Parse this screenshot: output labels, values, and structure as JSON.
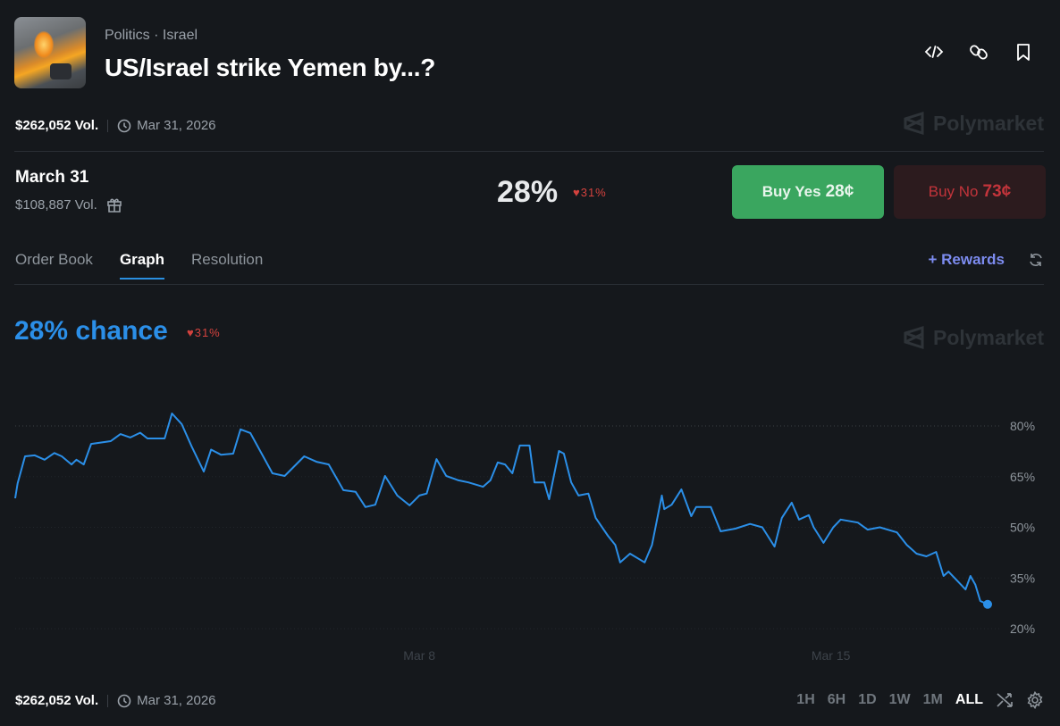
{
  "header": {
    "category": "Politics",
    "tag": "Israel",
    "title": "US/Israel strike Yemen by...?",
    "icons": [
      "code-embed-icon",
      "link-icon",
      "bookmark-icon"
    ]
  },
  "meta": {
    "volume": "$262,052 Vol.",
    "end_date": "Mar 31, 2026"
  },
  "brand": "Polymarket",
  "market": {
    "title": "March 31",
    "volume": "$108,887 Vol.",
    "percent": "28%",
    "change": "31%",
    "change_direction": "down",
    "buy_yes_label": "Buy Yes",
    "buy_yes_price": "28¢",
    "buy_no_label": "Buy No",
    "buy_no_price": "73¢"
  },
  "tabs": [
    {
      "label": "Order Book",
      "active": false
    },
    {
      "label": "Graph",
      "active": true
    },
    {
      "label": "Resolution",
      "active": false
    }
  ],
  "rewards": "+ Rewards",
  "chance": {
    "label": "28% chance",
    "change": "31%"
  },
  "colors": {
    "line": "#2b8fe8",
    "yes": "#3aa65f",
    "no": "#c3343b",
    "down": "#d4423e"
  },
  "chart_data": {
    "type": "line",
    "ylabel": "",
    "xlabel": "",
    "grid": true,
    "y_ticks": [
      "80%",
      "65%",
      "50%",
      "35%",
      "20%"
    ],
    "y_tick_values": [
      80,
      65,
      50,
      35,
      20
    ],
    "x_ticks": [
      "Mar 8",
      "Mar 15"
    ],
    "x_tick_values": [
      "2026-03-08T00:00",
      "2026-03-15T00:00"
    ],
    "series": [
      {
        "points": [
          [
            "2026-03-01T03:00",
            58.6
          ],
          [
            "2026-03-01T04:00",
            63
          ],
          [
            "2026-03-01T07:00",
            71
          ],
          [
            "2026-03-01T11:00",
            71.3
          ],
          [
            "2026-03-01T15:00",
            70
          ],
          [
            "2026-03-01T19:00",
            72
          ],
          [
            "2026-03-01T22:00",
            71
          ],
          [
            "2026-03-02T02:00",
            68.6
          ],
          [
            "2026-03-02T04:00",
            70
          ],
          [
            "2026-03-02T07:00",
            68.6
          ],
          [
            "2026-03-02T10:00",
            74.7
          ],
          [
            "2026-03-02T18:00",
            75.5
          ],
          [
            "2026-03-02T22:00",
            77.6
          ],
          [
            "2026-03-03T02:00",
            76.6
          ],
          [
            "2026-03-03T06:00",
            78
          ],
          [
            "2026-03-03T09:00",
            76.3
          ],
          [
            "2026-03-03T16:00",
            76.3
          ],
          [
            "2026-03-03T19:00",
            83.7
          ],
          [
            "2026-03-03T23:00",
            80.5
          ],
          [
            "2026-03-04T03:00",
            74
          ],
          [
            "2026-03-04T08:00",
            66.5
          ],
          [
            "2026-03-04T11:00",
            73
          ],
          [
            "2026-03-04T15:00",
            71.5
          ],
          [
            "2026-03-04T20:00",
            71.8
          ],
          [
            "2026-03-04T23:00",
            79
          ],
          [
            "2026-03-05T03:00",
            77.9
          ],
          [
            "2026-03-05T08:00",
            71.3
          ],
          [
            "2026-03-05T12:00",
            66
          ],
          [
            "2026-03-05T17:00",
            65.2
          ],
          [
            "2026-03-06T01:00",
            71
          ],
          [
            "2026-03-06T06:00",
            69.4
          ],
          [
            "2026-03-06T11:00",
            68.6
          ],
          [
            "2026-03-06T17:00",
            61
          ],
          [
            "2026-03-06T22:00",
            60.5
          ],
          [
            "2026-03-07T02:00",
            56
          ],
          [
            "2026-03-07T06:00",
            56.7
          ],
          [
            "2026-03-07T10:00",
            65.2
          ],
          [
            "2026-03-07T15:00",
            59.4
          ],
          [
            "2026-03-07T20:00",
            56.5
          ],
          [
            "2026-03-08T00:00",
            59.4
          ],
          [
            "2026-03-08T03:00",
            60
          ],
          [
            "2026-03-08T07:00",
            70.2
          ],
          [
            "2026-03-08T11:00",
            65.2
          ],
          [
            "2026-03-08T16:00",
            63.9
          ],
          [
            "2026-03-08T20:00",
            63.3
          ],
          [
            "2026-03-09T02:00",
            62
          ],
          [
            "2026-03-09T05:00",
            63.9
          ],
          [
            "2026-03-09T08:00",
            69.2
          ],
          [
            "2026-03-09T11:00",
            68.6
          ],
          [
            "2026-03-09T14:00",
            66
          ],
          [
            "2026-03-09T17:00",
            74.2
          ],
          [
            "2026-03-09T21:00",
            74.2
          ],
          [
            "2026-03-09T23:00",
            63.3
          ],
          [
            "2026-03-10T03:00",
            63.3
          ],
          [
            "2026-03-10T05:00",
            58.3
          ],
          [
            "2026-03-10T09:00",
            72.6
          ],
          [
            "2026-03-10T11:00",
            71.8
          ],
          [
            "2026-03-10T14:00",
            63.3
          ],
          [
            "2026-03-10T17:00",
            59.4
          ],
          [
            "2026-03-10T21:00",
            60
          ],
          [
            "2026-03-11T00:00",
            52.8
          ],
          [
            "2026-03-11T05:00",
            47.5
          ],
          [
            "2026-03-11T08:00",
            44.8
          ],
          [
            "2026-03-11T10:00",
            39.6
          ],
          [
            "2026-03-11T14:00",
            42.2
          ],
          [
            "2026-03-11T20:00",
            39.6
          ],
          [
            "2026-03-11T23:00",
            44.8
          ],
          [
            "2026-03-12T03:00",
            59.4
          ],
          [
            "2026-03-12T04:00",
            55.4
          ],
          [
            "2026-03-12T07:00",
            56.7
          ],
          [
            "2026-03-12T11:00",
            61.2
          ],
          [
            "2026-03-12T15:00",
            53.3
          ],
          [
            "2026-03-12T17:00",
            56
          ],
          [
            "2026-03-12T23:00",
            56
          ],
          [
            "2026-03-13T03:00",
            48.8
          ],
          [
            "2026-03-13T09:00",
            49.6
          ],
          [
            "2026-03-13T15:00",
            51
          ],
          [
            "2026-03-13T20:00",
            50
          ],
          [
            "2026-03-14T01:00",
            44.3
          ],
          [
            "2026-03-14T04:00",
            52.8
          ],
          [
            "2026-03-14T08:00",
            57.3
          ],
          [
            "2026-03-14T11:00",
            52.3
          ],
          [
            "2026-03-14T15:00",
            53.6
          ],
          [
            "2026-03-14T17:00",
            50
          ],
          [
            "2026-03-14T21:00",
            45.4
          ],
          [
            "2026-03-15T01:00",
            50
          ],
          [
            "2026-03-15T04:00",
            52.3
          ],
          [
            "2026-03-15T11:00",
            51.4
          ],
          [
            "2026-03-15T15:00",
            49.3
          ],
          [
            "2026-03-15T20:00",
            50
          ],
          [
            "2026-03-16T03:00",
            48.5
          ],
          [
            "2026-03-16T07:00",
            44.8
          ],
          [
            "2026-03-16T11:00",
            42.2
          ],
          [
            "2026-03-16T15:00",
            41.4
          ],
          [
            "2026-03-16T19:00",
            42.7
          ],
          [
            "2026-03-16T22:00",
            35.6
          ],
          [
            "2026-03-17T00:00",
            36.9
          ],
          [
            "2026-03-17T07:00",
            31.6
          ],
          [
            "2026-03-17T09:00",
            35.6
          ],
          [
            "2026-03-17T11:00",
            33
          ],
          [
            "2026-03-17T13:00",
            28.2
          ],
          [
            "2026-03-17T16:00",
            27.2
          ]
        ]
      }
    ]
  },
  "footer": {
    "volume": "$262,052 Vol.",
    "end_date": "Mar 31, 2026",
    "ranges": [
      {
        "label": "1H",
        "active": false
      },
      {
        "label": "6H",
        "active": false
      },
      {
        "label": "1D",
        "active": false
      },
      {
        "label": "1W",
        "active": false
      },
      {
        "label": "1M",
        "active": false
      },
      {
        "label": "ALL",
        "active": true
      }
    ]
  }
}
